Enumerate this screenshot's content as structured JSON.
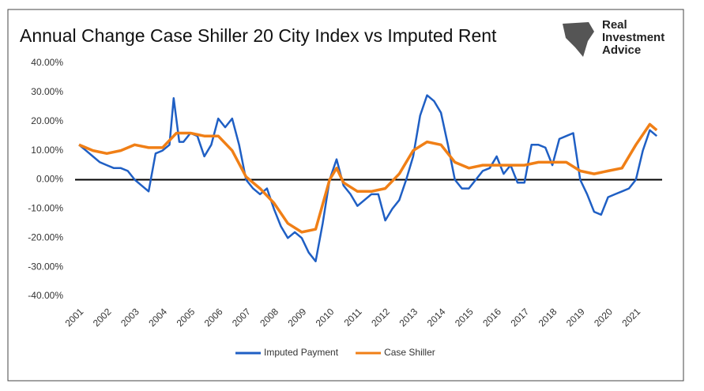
{
  "logo": [
    "Real",
    "Investment",
    "Advice"
  ],
  "chart_data": {
    "type": "line",
    "title": "Annual Change Case Shiller 20 City Index vs Imputed Rent",
    "xlim": [
      2001,
      2021.8
    ],
    "xticks": [
      2001,
      2002,
      2003,
      2004,
      2005,
      2006,
      2007,
      2008,
      2009,
      2010,
      2011,
      2012,
      2013,
      2014,
      2015,
      2016,
      2017,
      2018,
      2019,
      2020,
      2021
    ],
    "ylim": [
      -40,
      40
    ],
    "yticks": [
      {
        "value": 40,
        "label": "40.00%"
      },
      {
        "value": 30,
        "label": "30.00%"
      },
      {
        "value": 20,
        "label": "20.00%"
      },
      {
        "value": 10,
        "label": "10.00%"
      },
      {
        "value": 0,
        "label": "0.00%"
      },
      {
        "value": -10,
        "label": "-10.00%"
      },
      {
        "value": -20,
        "label": "-20.00%"
      },
      {
        "value": -30,
        "label": "-30.00%"
      },
      {
        "value": -40,
        "label": "-40.00%"
      }
    ],
    "zero_line": true,
    "legend": "bottom",
    "series": [
      {
        "name": "Imputed Payment",
        "color": "#1f5fc4",
        "x": [
          2001,
          2001.25,
          2001.5,
          2001.75,
          2002,
          2002.25,
          2002.5,
          2002.75,
          2003,
          2003.25,
          2003.5,
          2003.75,
          2004,
          2004.25,
          2004.4,
          2004.6,
          2004.75,
          2005,
          2005.25,
          2005.5,
          2005.75,
          2006,
          2006.25,
          2006.5,
          2006.75,
          2007,
          2007.25,
          2007.5,
          2007.75,
          2008,
          2008.25,
          2008.5,
          2008.75,
          2009,
          2009.25,
          2009.5,
          2009.75,
          2010,
          2010.25,
          2010.5,
          2010.75,
          2011,
          2011.25,
          2011.5,
          2011.75,
          2012,
          2012.25,
          2012.5,
          2012.75,
          2013,
          2013.25,
          2013.5,
          2013.75,
          2014,
          2014.25,
          2014.5,
          2014.75,
          2015,
          2015.25,
          2015.5,
          2015.75,
          2016,
          2016.25,
          2016.5,
          2016.75,
          2017,
          2017.25,
          2017.5,
          2017.75,
          2018,
          2018.25,
          2018.5,
          2018.75,
          2019,
          2019.25,
          2019.5,
          2019.75,
          2020,
          2020.25,
          2020.5,
          2020.75,
          2021,
          2021.25,
          2021.5,
          2021.75
        ],
        "values": [
          12,
          10,
          8,
          6,
          5,
          4,
          4,
          3,
          0,
          -2,
          -4,
          9,
          10,
          12,
          28,
          13,
          13,
          16,
          15,
          8,
          12,
          21,
          18,
          21,
          12,
          0,
          -3,
          -5,
          -3,
          -10,
          -16,
          -20,
          -18,
          -20,
          -25,
          -28,
          -15,
          0,
          7,
          -2,
          -5,
          -9,
          -7,
          -5,
          -5,
          -14,
          -10,
          -7,
          0,
          8,
          22,
          29,
          27,
          23,
          12,
          0,
          -3,
          -3,
          0,
          3,
          4,
          8,
          2,
          5,
          -1,
          -1,
          12,
          12,
          11,
          5,
          14,
          15,
          16,
          0,
          -5,
          -11,
          -12,
          -6,
          -5,
          -4,
          -3,
          0,
          10,
          17,
          15
        ]
      },
      {
        "name": "Case Shiller",
        "color": "#f07f16",
        "x": [
          2001,
          2001.5,
          2002,
          2002.5,
          2003,
          2003.5,
          2004,
          2004.5,
          2005,
          2005.5,
          2006,
          2006.5,
          2007,
          2007.5,
          2008,
          2008.5,
          2009,
          2009.5,
          2010,
          2010.25,
          2010.5,
          2011,
          2011.5,
          2012,
          2012.5,
          2013,
          2013.5,
          2014,
          2014.5,
          2015,
          2015.5,
          2016,
          2016.5,
          2017,
          2017.5,
          2018,
          2018.5,
          2019,
          2019.5,
          2020,
          2020.5,
          2021,
          2021.5,
          2021.75
        ],
        "values": [
          12,
          10,
          9,
          10,
          12,
          11,
          11,
          16,
          16,
          15,
          15,
          10,
          1,
          -3,
          -8,
          -15,
          -18,
          -17,
          0,
          4,
          -1,
          -4,
          -4,
          -3,
          2,
          10,
          13,
          12,
          6,
          4,
          5,
          5,
          5,
          5,
          6,
          6,
          6,
          3,
          2,
          3,
          4,
          12,
          19,
          17
        ]
      }
    ]
  }
}
